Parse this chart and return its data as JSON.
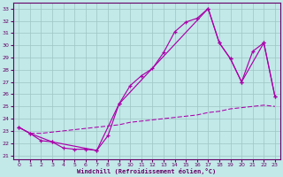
{
  "xlabel": "Windchill (Refroidissement éolien,°C)",
  "bg_color": "#c2e8e8",
  "grid_color": "#9fc4c4",
  "line_color": "#aa00aa",
  "spine_color": "#660066",
  "xlim": [
    -0.5,
    23.5
  ],
  "ylim": [
    20.7,
    33.5
  ],
  "xticks": [
    0,
    1,
    2,
    3,
    4,
    5,
    6,
    7,
    8,
    9,
    10,
    11,
    12,
    13,
    14,
    15,
    16,
    17,
    18,
    19,
    20,
    21,
    22,
    23
  ],
  "yticks": [
    21,
    22,
    23,
    24,
    25,
    26,
    27,
    28,
    29,
    30,
    31,
    32,
    33
  ],
  "line1_x": [
    0,
    1,
    2,
    3,
    4,
    5,
    6,
    7,
    8,
    9,
    10,
    11,
    12,
    13,
    14,
    15,
    16,
    17,
    18,
    19,
    20,
    21,
    22,
    23
  ],
  "line1_y": [
    23.3,
    22.8,
    22.2,
    22.1,
    21.6,
    21.5,
    21.5,
    21.4,
    22.6,
    25.2,
    26.7,
    27.5,
    28.1,
    29.4,
    31.1,
    31.9,
    32.2,
    33.0,
    30.2,
    28.9,
    27.0,
    29.5,
    30.2,
    25.8
  ],
  "line2_x": [
    0,
    1,
    3,
    7,
    9,
    17,
    18,
    19,
    20,
    22,
    23
  ],
  "line2_y": [
    23.3,
    22.8,
    22.1,
    21.4,
    25.2,
    33.0,
    30.2,
    28.9,
    27.0,
    30.2,
    25.8
  ],
  "line3_x": [
    0,
    1,
    2,
    3,
    4,
    5,
    6,
    7,
    8,
    9,
    10,
    11,
    12,
    13,
    14,
    15,
    16,
    17,
    18,
    19,
    20,
    21,
    22,
    23
  ],
  "line3_y": [
    23.3,
    22.8,
    22.8,
    22.9,
    23.0,
    23.1,
    23.2,
    23.3,
    23.4,
    23.5,
    23.7,
    23.8,
    23.9,
    24.0,
    24.1,
    24.2,
    24.3,
    24.5,
    24.6,
    24.8,
    24.9,
    25.0,
    25.1,
    25.0
  ]
}
